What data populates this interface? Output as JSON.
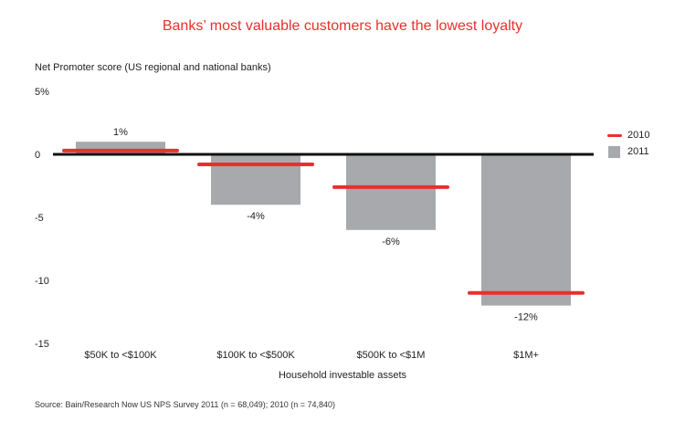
{
  "title": "Banks’ most valuable customers have the lowest loyalty",
  "source": "Source: Bain/Research Now US NPS Survey 2011 (n = 68,049); 2010 (n = 74,840)",
  "chart_data": {
    "type": "bar",
    "title": "Banks’ most valuable customers have the lowest loyalty",
    "ylabel": "Net Promoter score (US regional and national banks)",
    "xlabel": "Household investable assets",
    "categories": [
      "$50K to <$100K",
      "$100K to <$500K",
      "$500K to <$1M",
      "$1M+"
    ],
    "ylim": [
      -15,
      5
    ],
    "yticks": [
      5,
      0,
      -5,
      -10,
      -15
    ],
    "ytick_labels": [
      "5%",
      "0",
      "-5",
      "-10",
      "-15"
    ],
    "grid": false,
    "legend_position": "right",
    "series": [
      {
        "name": "2011",
        "kind": "bar",
        "color": "#a7a9ac",
        "values": [
          1,
          -4,
          -6,
          -12
        ],
        "data_labels": [
          "1%",
          "-4%",
          "-6%",
          "-12%"
        ]
      },
      {
        "name": "2010",
        "kind": "marker-line",
        "color": "#e8302c",
        "values": [
          0.3,
          -0.8,
          -2.6,
          -11
        ]
      }
    ]
  }
}
